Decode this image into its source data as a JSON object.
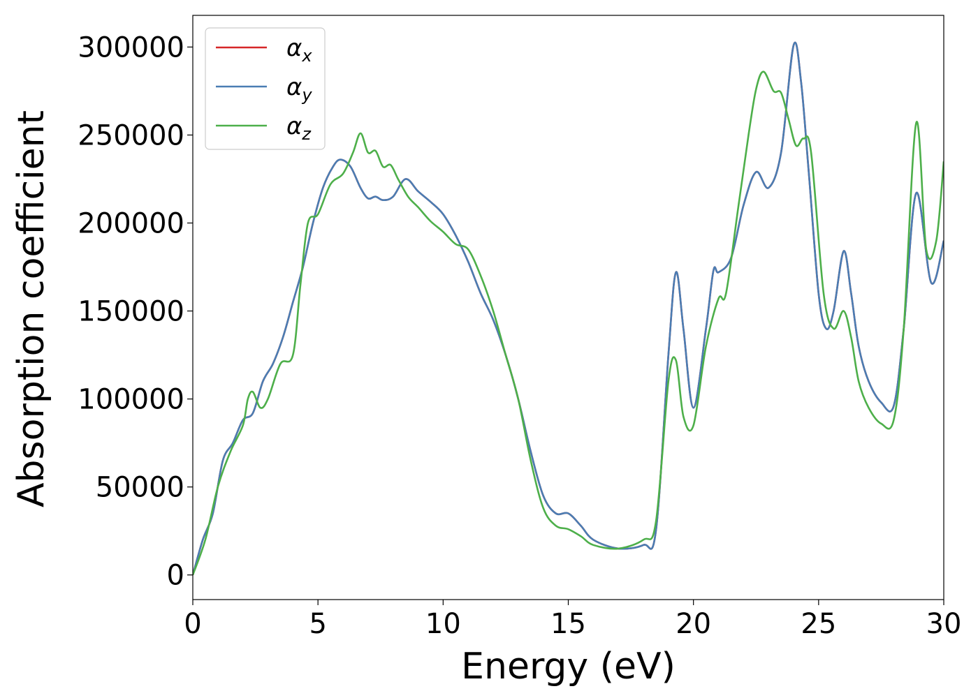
{
  "chart_data": {
    "type": "line",
    "xlabel": "Energy (eV)",
    "ylabel": "Absorption coefficient",
    "xlim": [
      0,
      30
    ],
    "ylim": [
      -14000,
      318000
    ],
    "x_ticks": [
      0,
      5,
      10,
      15,
      20,
      25,
      30
    ],
    "y_ticks": [
      0,
      50000,
      100000,
      150000,
      200000,
      250000,
      300000
    ],
    "grid": false,
    "legend_position": "top-left",
    "series": [
      {
        "name": "α",
        "sub": "x",
        "color": "#d62728",
        "x": [
          0,
          0.4,
          0.8,
          1.2,
          1.6,
          2,
          2.4,
          2.8,
          3.2,
          3.6,
          4,
          4.4,
          4.8,
          5.2,
          5.6,
          5.9,
          6.3,
          6.7,
          7,
          7.3,
          7.6,
          8,
          8.5,
          9,
          9.5,
          10,
          10.5,
          11,
          11.5,
          12,
          12.5,
          13,
          13.5,
          14,
          14.5,
          15,
          15.5,
          16,
          17,
          18,
          18.5,
          19,
          19.3,
          19.6,
          20,
          20.5,
          20.8,
          21,
          21.5,
          22,
          22.5,
          23,
          23.5,
          24,
          24.3,
          24.6,
          25,
          25.3,
          25.6,
          26,
          26.3,
          26.6,
          27,
          27.5,
          28,
          28.4,
          28.9,
          29.5,
          30
        ],
        "y": [
          0,
          20000,
          35000,
          65000,
          75000,
          88000,
          92000,
          110000,
          120000,
          135000,
          155000,
          175000,
          200000,
          220000,
          232000,
          236000,
          232000,
          220000,
          214000,
          215000,
          213000,
          215000,
          225000,
          218000,
          212000,
          205000,
          193000,
          178000,
          160000,
          145000,
          125000,
          100000,
          70000,
          45000,
          35000,
          35000,
          28000,
          20000,
          15000,
          17000,
          25000,
          125000,
          172000,
          140000,
          95000,
          140000,
          173000,
          172000,
          180000,
          210000,
          229000,
          220000,
          240000,
          301000,
          280000,
          230000,
          160000,
          140000,
          150000,
          184000,
          160000,
          130000,
          110000,
          98000,
          96000,
          140000,
          217000,
          166000,
          190000
        ]
      },
      {
        "name": "α",
        "sub": "y",
        "color": "#4a7db3",
        "x": [
          0,
          0.4,
          0.8,
          1.2,
          1.6,
          2,
          2.4,
          2.8,
          3.2,
          3.6,
          4,
          4.4,
          4.8,
          5.2,
          5.6,
          5.9,
          6.3,
          6.7,
          7,
          7.3,
          7.6,
          8,
          8.5,
          9,
          9.5,
          10,
          10.5,
          11,
          11.5,
          12,
          12.5,
          13,
          13.5,
          14,
          14.5,
          15,
          15.5,
          16,
          17,
          18,
          18.5,
          19,
          19.3,
          19.6,
          20,
          20.5,
          20.8,
          21,
          21.5,
          22,
          22.5,
          23,
          23.5,
          24,
          24.3,
          24.6,
          25,
          25.3,
          25.6,
          26,
          26.3,
          26.6,
          27,
          27.5,
          28,
          28.4,
          28.9,
          29.5,
          30
        ],
        "y": [
          0,
          20000,
          35000,
          65000,
          75000,
          88000,
          92000,
          110000,
          120000,
          135000,
          155000,
          175000,
          200000,
          220000,
          232000,
          236000,
          232000,
          220000,
          214000,
          215000,
          213000,
          215000,
          225000,
          218000,
          212000,
          205000,
          193000,
          178000,
          160000,
          145000,
          125000,
          100000,
          70000,
          45000,
          35000,
          35000,
          28000,
          20000,
          15000,
          17000,
          25000,
          125000,
          172000,
          140000,
          95000,
          140000,
          173000,
          172000,
          180000,
          210000,
          229000,
          220000,
          240000,
          301000,
          280000,
          230000,
          160000,
          140000,
          150000,
          184000,
          160000,
          130000,
          110000,
          98000,
          96000,
          140000,
          217000,
          166000,
          190000
        ]
      },
      {
        "name": "α",
        "sub": "z",
        "color": "#4daf4a",
        "x": [
          0,
          0.5,
          1,
          1.5,
          2,
          2.2,
          2.4,
          2.7,
          3,
          3.5,
          4,
          4.3,
          4.6,
          5,
          5.5,
          6,
          6.4,
          6.7,
          7,
          7.3,
          7.6,
          7.9,
          8.2,
          8.6,
          9,
          9.5,
          10,
          10.5,
          11,
          11.5,
          12,
          12.5,
          13,
          13.5,
          14,
          14.5,
          15,
          15.5,
          16,
          17,
          18,
          18.5,
          19,
          19.3,
          19.6,
          20,
          20.5,
          21,
          21.3,
          21.8,
          22.2,
          22.5,
          22.8,
          23.2,
          23.5,
          23.8,
          24.1,
          24.4,
          24.7,
          25.2,
          25.6,
          26,
          26.3,
          26.6,
          27,
          27.5,
          28,
          28.4,
          28.9,
          29.3,
          29.7,
          30
        ],
        "y": [
          0,
          20000,
          50000,
          70000,
          85000,
          100000,
          104000,
          95000,
          100000,
          120000,
          125000,
          165000,
          200000,
          205000,
          222000,
          228000,
          240000,
          251000,
          240000,
          241000,
          232000,
          233000,
          225000,
          215000,
          209000,
          201000,
          195000,
          188000,
          185000,
          170000,
          150000,
          125000,
          100000,
          65000,
          38000,
          28000,
          26000,
          22000,
          17000,
          15000,
          20000,
          30000,
          110000,
          122000,
          90000,
          85000,
          130000,
          157000,
          160000,
          210000,
          250000,
          276000,
          286000,
          275000,
          274000,
          259000,
          244000,
          248000,
          240000,
          160000,
          140000,
          150000,
          135000,
          110000,
          95000,
          86000,
          88000,
          140000,
          257000,
          185000,
          190000,
          235000
        ]
      }
    ]
  }
}
